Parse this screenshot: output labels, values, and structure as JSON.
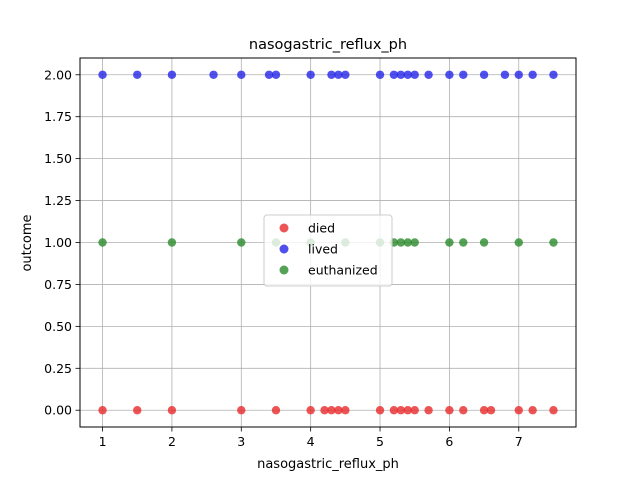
{
  "chart_data": {
    "type": "scatter",
    "title": "nasogastric_reflux_ph",
    "xlabel": "nasogastric_reflux_ph",
    "ylabel": "outcome",
    "xlim": [
      0.675,
      7.825
    ],
    "ylim": [
      -0.1,
      2.1
    ],
    "x_ticks": [
      1,
      2,
      3,
      4,
      5,
      6,
      7
    ],
    "x_tick_labels": [
      "1",
      "2",
      "3",
      "4",
      "5",
      "6",
      "7"
    ],
    "y_ticks": [
      0,
      0.25,
      0.5,
      0.75,
      1,
      1.25,
      1.5,
      1.75,
      2
    ],
    "y_tick_labels": [
      "0.00",
      "0.25",
      "0.50",
      "0.75",
      "1.00",
      "1.25",
      "1.50",
      "1.75",
      "2.00"
    ],
    "grid": true,
    "legend_position": "center",
    "series": [
      {
        "name": "died",
        "color": "#e8292b",
        "points": [
          [
            1,
            0
          ],
          [
            1.5,
            0
          ],
          [
            2,
            0
          ],
          [
            3,
            0
          ],
          [
            3.5,
            0
          ],
          [
            4,
            0
          ],
          [
            4.2,
            0
          ],
          [
            4.3,
            0
          ],
          [
            4.4,
            0
          ],
          [
            4.5,
            0
          ],
          [
            5,
            0
          ],
          [
            5.2,
            0
          ],
          [
            5.3,
            0
          ],
          [
            5.4,
            0
          ],
          [
            5.5,
            0
          ],
          [
            5.7,
            0
          ],
          [
            6,
            0
          ],
          [
            6.2,
            0
          ],
          [
            6.5,
            0
          ],
          [
            6.6,
            0
          ],
          [
            7,
            0
          ],
          [
            7.2,
            0
          ],
          [
            7.5,
            0
          ]
        ]
      },
      {
        "name": "lived",
        "color": "#2424e8",
        "points": [
          [
            1,
            2
          ],
          [
            1.5,
            2
          ],
          [
            2,
            2
          ],
          [
            2.6,
            2
          ],
          [
            3,
            2
          ],
          [
            3.4,
            2
          ],
          [
            3.5,
            2
          ],
          [
            4,
            2
          ],
          [
            4.3,
            2
          ],
          [
            4.4,
            2
          ],
          [
            4.5,
            2
          ],
          [
            5,
            2
          ],
          [
            5.2,
            2
          ],
          [
            5.3,
            2
          ],
          [
            5.4,
            2
          ],
          [
            5.5,
            2
          ],
          [
            5.7,
            2
          ],
          [
            6,
            2
          ],
          [
            6.2,
            2
          ],
          [
            6.5,
            2
          ],
          [
            6.8,
            2
          ],
          [
            7,
            2
          ],
          [
            7.2,
            2
          ],
          [
            7.5,
            2
          ]
        ]
      },
      {
        "name": "euthanized",
        "color": "#2a8a2a",
        "points": [
          [
            1,
            1
          ],
          [
            2,
            1
          ],
          [
            3,
            1
          ],
          [
            3.5,
            1
          ],
          [
            4,
            1
          ],
          [
            4.5,
            1
          ],
          [
            5,
            1
          ],
          [
            5.2,
            1
          ],
          [
            5.3,
            1
          ],
          [
            5.4,
            1
          ],
          [
            5.5,
            1
          ],
          [
            6,
            1
          ],
          [
            6.2,
            1
          ],
          [
            6.5,
            1
          ],
          [
            7,
            1
          ],
          [
            7.5,
            1
          ]
        ]
      }
    ]
  }
}
